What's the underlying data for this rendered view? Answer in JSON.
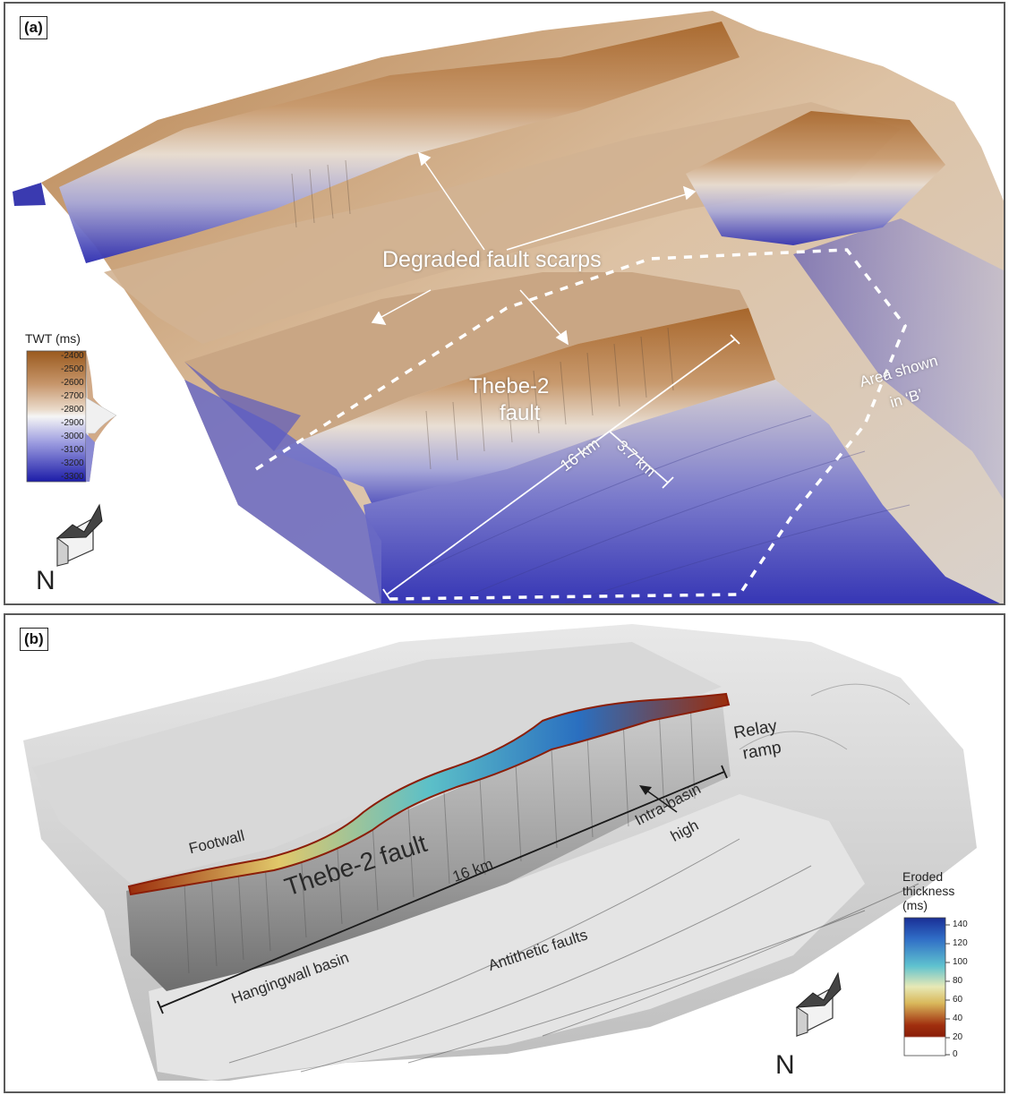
{
  "panel_a": {
    "label": "(a)",
    "annotations": {
      "degraded_fault_scarps": "Degraded fault scarps",
      "fault_name_line1": "Thebe-2",
      "fault_name_line2": "fault",
      "length": "16 km",
      "width": "3.7 km",
      "area_line1": "Area shown",
      "area_line2": "in ‘B’"
    },
    "legend": {
      "title": "TWT (ms)",
      "ticks": [
        "-2400",
        "-2500",
        "-2600",
        "-2700",
        "-2800",
        "-2900",
        "-3000",
        "-3100",
        "-3200",
        "-3300"
      ],
      "color_top": "#9a5a1e",
      "color_mid": "#f5f5f5",
      "color_bottom": "#1c1ca8"
    },
    "north": "N"
  },
  "panel_b": {
    "label": "(b)",
    "annotations": {
      "relay_line1": "Relay",
      "relay_line2": "ramp",
      "footwall": "Footwall",
      "fault_name": "Thebe-2 fault",
      "length": "16 km",
      "intra_line1": "Intra-basin",
      "intra_line2": "high",
      "hangingwall": "Hangingwall basin",
      "antithetic": "Antithetic faults"
    },
    "legend": {
      "title_line1": "Eroded",
      "title_line2": "thickness",
      "title_line3": "(ms)",
      "ticks": [
        "140",
        "120",
        "100",
        "80",
        "60",
        "40",
        "20",
        "0"
      ]
    },
    "north": "N"
  }
}
